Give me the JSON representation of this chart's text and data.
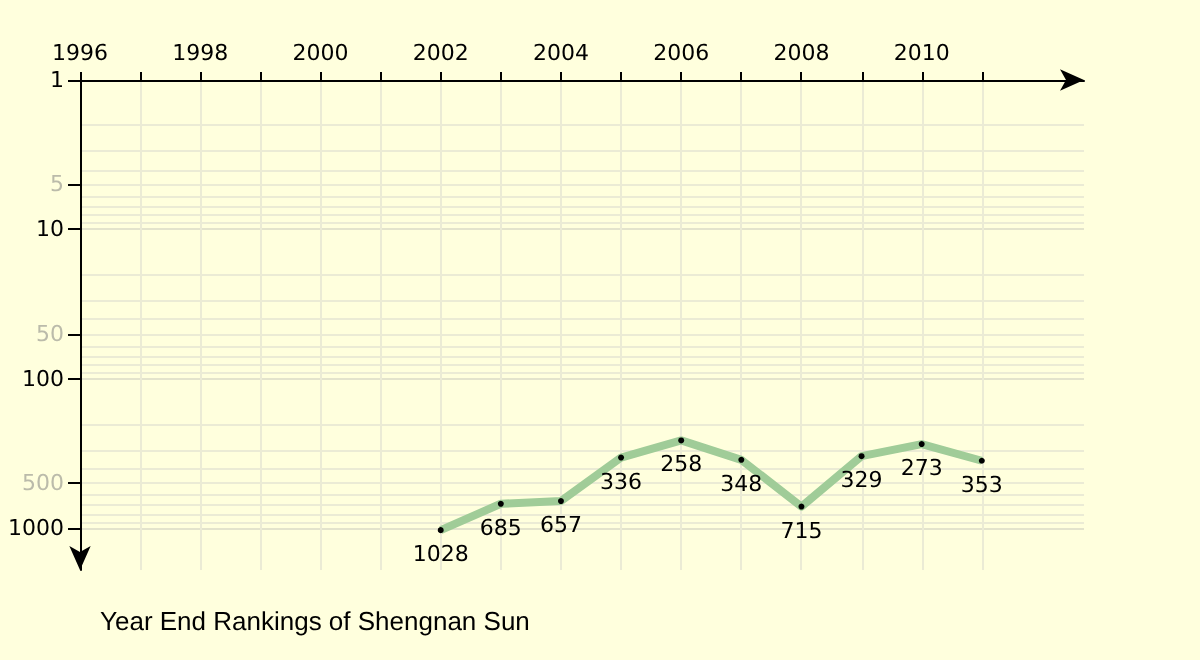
{
  "chart_data": {
    "type": "line",
    "title": "Year End Rankings of Shengnan Sun",
    "x": [
      2002,
      2003,
      2004,
      2005,
      2006,
      2007,
      2008,
      2009,
      2010,
      2011
    ],
    "series": [
      {
        "color": "#a0cc98",
        "values": [
          1028,
          685,
          657,
          336,
          258,
          348,
          715,
          329,
          273,
          353
        ]
      }
    ],
    "xlim": [
      1996,
      2012.7
    ],
    "xticks": [
      1996,
      {
        "value": 1997,
        "label": null
      },
      1998,
      {
        "value": 1999,
        "label": null
      },
      2000,
      {
        "value": 2001,
        "label": null
      },
      2002,
      {
        "value": 2003,
        "label": null
      },
      2004,
      {
        "value": 2005,
        "label": null
      },
      2006,
      {
        "value": 2007,
        "label": null
      },
      2008,
      {
        "value": 2009,
        "label": null
      },
      2010,
      {
        "value": 2011,
        "label": null
      }
    ],
    "ylim": [
      1900,
      1
    ],
    "yticks": [
      1,
      5,
      10,
      50,
      100,
      500,
      1000
    ],
    "log": true,
    "grid": true,
    "data_labels": true,
    "marker": "circle"
  }
}
